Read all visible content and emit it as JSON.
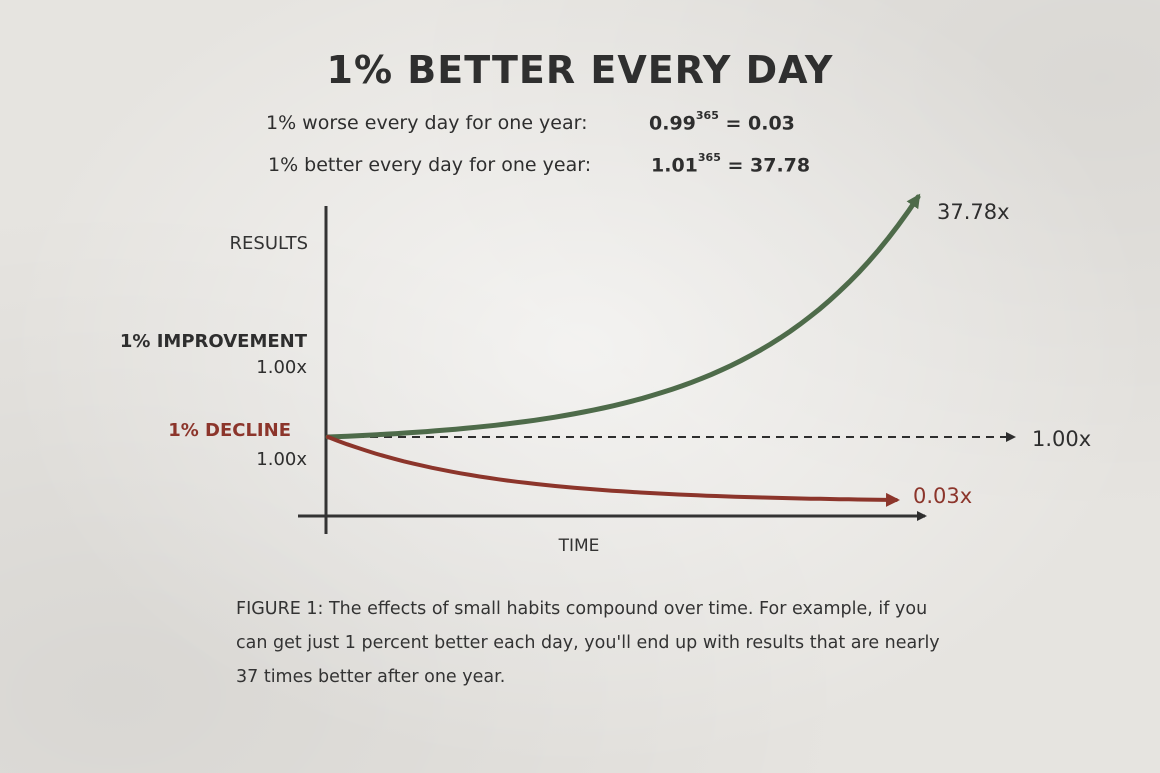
{
  "title": "1% BETTER EVERY DAY",
  "equations": [
    {
      "label": "1% worse every day for one year:",
      "base": "0.99",
      "exponent": "365",
      "result": "= 0.03"
    },
    {
      "label": "1% better every day for one year:",
      "base": "1.01",
      "exponent": "365",
      "result": "= 37.78"
    }
  ],
  "caption": "FIGURE 1: The effects of small habits compound over time. For example, if you can get just 1 percent better each day, you'll end up with results that are nearly 37 times better after one year.",
  "colors": {
    "improvement": "#4e6b4a",
    "decline": "#8c352b",
    "axis": "#333333",
    "baseline": "#2e2e2e"
  },
  "chart_data": {
    "type": "line",
    "xlabel": "TIME",
    "ylabel": "RESULTS",
    "x": [
      0,
      365
    ],
    "y_scale": "schematic",
    "series": [
      {
        "name": "1% IMPROVEMENT",
        "start_label": "1.00x",
        "end_label": "37.78x",
        "start": 1.0,
        "end": 37.78,
        "daily_rate": 1.01,
        "days": 365
      },
      {
        "name": "1% DECLINE",
        "start_label": "1.00x",
        "end_label": "0.03x",
        "start": 1.0,
        "end": 0.03,
        "daily_rate": 0.99,
        "days": 365
      }
    ],
    "baseline": {
      "value": 1.0,
      "label": "1.00x",
      "style": "dashed"
    },
    "grid": false,
    "legend": "none"
  }
}
